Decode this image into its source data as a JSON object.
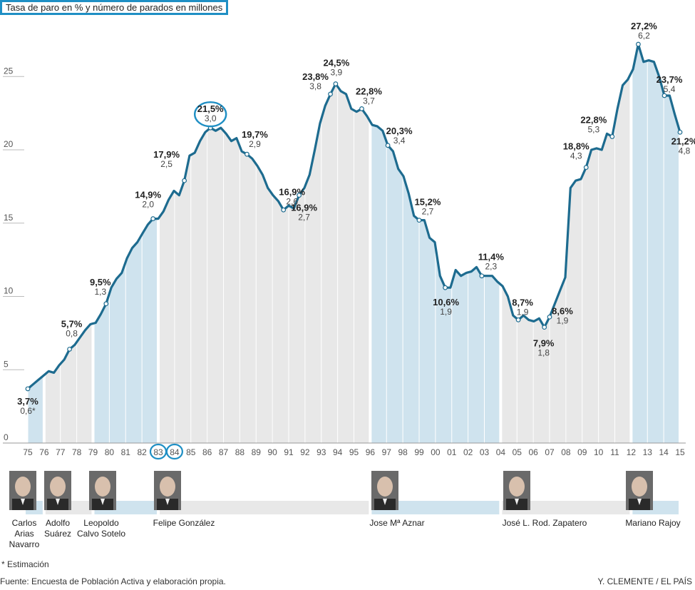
{
  "title": "Tasa de paro en % y número de parados en millones",
  "footnote": "* Estimación",
  "source": "Fuente: Encuesta de Población Activa y elaboración propia.",
  "credit": "Y. CLEMENTE / EL PAÍS",
  "colors": {
    "line": "#1d6b8f",
    "blue_band": "#cfe3ee",
    "gray_band": "#e8e8e8",
    "circle": "#1f8fc4"
  },
  "chart_data": {
    "type": "line",
    "y_ticks": [
      0,
      5,
      10,
      15,
      20,
      25
    ],
    "ylim": [
      0,
      28
    ],
    "x_labels": [
      "75",
      "76",
      "77",
      "78",
      "79",
      "80",
      "81",
      "82",
      "83",
      "84",
      "85",
      "86",
      "87",
      "88",
      "89",
      "90",
      "91",
      "92",
      "93",
      "94",
      "95",
      "96",
      "97",
      "98",
      "99",
      "00",
      "01",
      "02",
      "03",
      "04",
      "05",
      "06",
      "07",
      "08",
      "09",
      "10",
      "11",
      "12",
      "13",
      "14",
      "15"
    ],
    "highlighted_x_labels": [
      "83",
      "84"
    ],
    "series": [
      {
        "values": [
          3.7,
          4.0,
          4.3,
          4.6,
          4.9,
          4.8,
          5.3,
          5.7,
          6.4,
          6.7,
          7.2,
          7.7,
          8.1,
          8.2,
          8.8,
          9.5,
          10.6,
          11.2,
          11.6,
          12.6,
          13.3,
          13.7,
          14.3,
          14.9,
          15.3,
          15.3,
          15.8,
          16.6,
          17.2,
          16.9,
          17.9,
          19.6,
          19.8,
          20.6,
          21.2,
          21.5,
          21.3,
          21.5,
          21.1,
          20.6,
          20.8,
          19.9,
          19.7,
          19.4,
          18.9,
          18.3,
          17.4,
          16.9,
          16.5,
          15.9,
          16.2,
          16.0,
          16.9,
          17.4,
          18.3,
          20.0,
          21.8,
          23.0,
          23.8,
          24.5,
          24.0,
          23.8,
          22.8,
          22.6,
          22.8,
          22.3,
          21.7,
          21.6,
          21.3,
          20.3,
          19.9,
          18.7,
          18.2,
          17.0,
          15.5,
          15.2,
          15.2,
          14.0,
          13.7,
          11.4,
          10.6,
          10.6,
          11.8,
          11.4,
          11.6,
          11.7,
          12.0,
          11.4,
          11.4,
          11.4,
          11.0,
          10.7,
          10.0,
          8.7,
          8.4,
          8.7,
          8.4,
          8.3,
          8.5,
          7.9,
          8.6,
          9.5,
          10.4,
          11.3,
          17.4,
          17.9,
          18.0,
          18.8,
          20.0,
          20.1,
          20.0,
          21.1,
          20.9,
          22.8,
          24.4,
          24.8,
          25.5,
          27.2,
          26.0,
          26.1,
          26.0,
          25.0,
          23.7,
          23.7,
          22.4,
          21.2
        ]
      }
    ],
    "annotations": [
      {
        "pct": "3,7%",
        "millions": "0,6*"
      },
      {
        "pct": "5,7%",
        "millions": "0,8"
      },
      {
        "pct": "9,5%",
        "millions": "1,3"
      },
      {
        "pct": "14,9%",
        "millions": "2,0"
      },
      {
        "pct": "17,9%",
        "millions": "2,5"
      },
      {
        "pct": "21,5%",
        "millions": "3,0"
      },
      {
        "pct": "19,7%",
        "millions": "2,9"
      },
      {
        "pct": "16,9%",
        "millions": "2,6"
      },
      {
        "pct": "16,9%",
        "millions": "2,7"
      },
      {
        "pct": "23,8%",
        "millions": "3,8"
      },
      {
        "pct": "24,5%",
        "millions": "3,9"
      },
      {
        "pct": "22,8%",
        "millions": "3,7"
      },
      {
        "pct": "20,3%",
        "millions": "3,4"
      },
      {
        "pct": "15,2%",
        "millions": "2,7"
      },
      {
        "pct": "10,6%",
        "millions": "1,9"
      },
      {
        "pct": "11,4%",
        "millions": "2,3"
      },
      {
        "pct": "8,7%",
        "millions": "1,9"
      },
      {
        "pct": "7,9%",
        "millions": "1,8"
      },
      {
        "pct": "8,6%",
        "millions": "1,9"
      },
      {
        "pct": "18,8%",
        "millions": "4,3"
      },
      {
        "pct": "22,8%",
        "millions": "5,3"
      },
      {
        "pct": "27,2%",
        "millions": "6,2"
      },
      {
        "pct": "23,7%",
        "millions": "5,4"
      },
      {
        "pct": "21,2%",
        "millions": "4,8"
      }
    ],
    "terms": [
      {
        "name": [
          "Carlos",
          "Arias",
          "Navarro"
        ],
        "start": "75",
        "end": "76",
        "band": "blue"
      },
      {
        "name": [
          "Adolfo",
          "Suárez"
        ],
        "start": "76",
        "end": "79",
        "band": "gray"
      },
      {
        "name": [
          "Leopoldo",
          "Calvo Sotelo"
        ],
        "start": "79",
        "end": "83",
        "band": "blue"
      },
      {
        "name": [
          "Felipe González"
        ],
        "start": "83",
        "end": "96",
        "band": "gray"
      },
      {
        "name": [
          "Jose Mª Aznar"
        ],
        "start": "96",
        "end": "04",
        "band": "blue"
      },
      {
        "name": [
          "José L. Rod. Zapatero"
        ],
        "start": "04",
        "end": "12",
        "band": "gray"
      },
      {
        "name": [
          "Mariano Rajoy"
        ],
        "start": "12",
        "end": "15",
        "band": "blue"
      }
    ]
  }
}
